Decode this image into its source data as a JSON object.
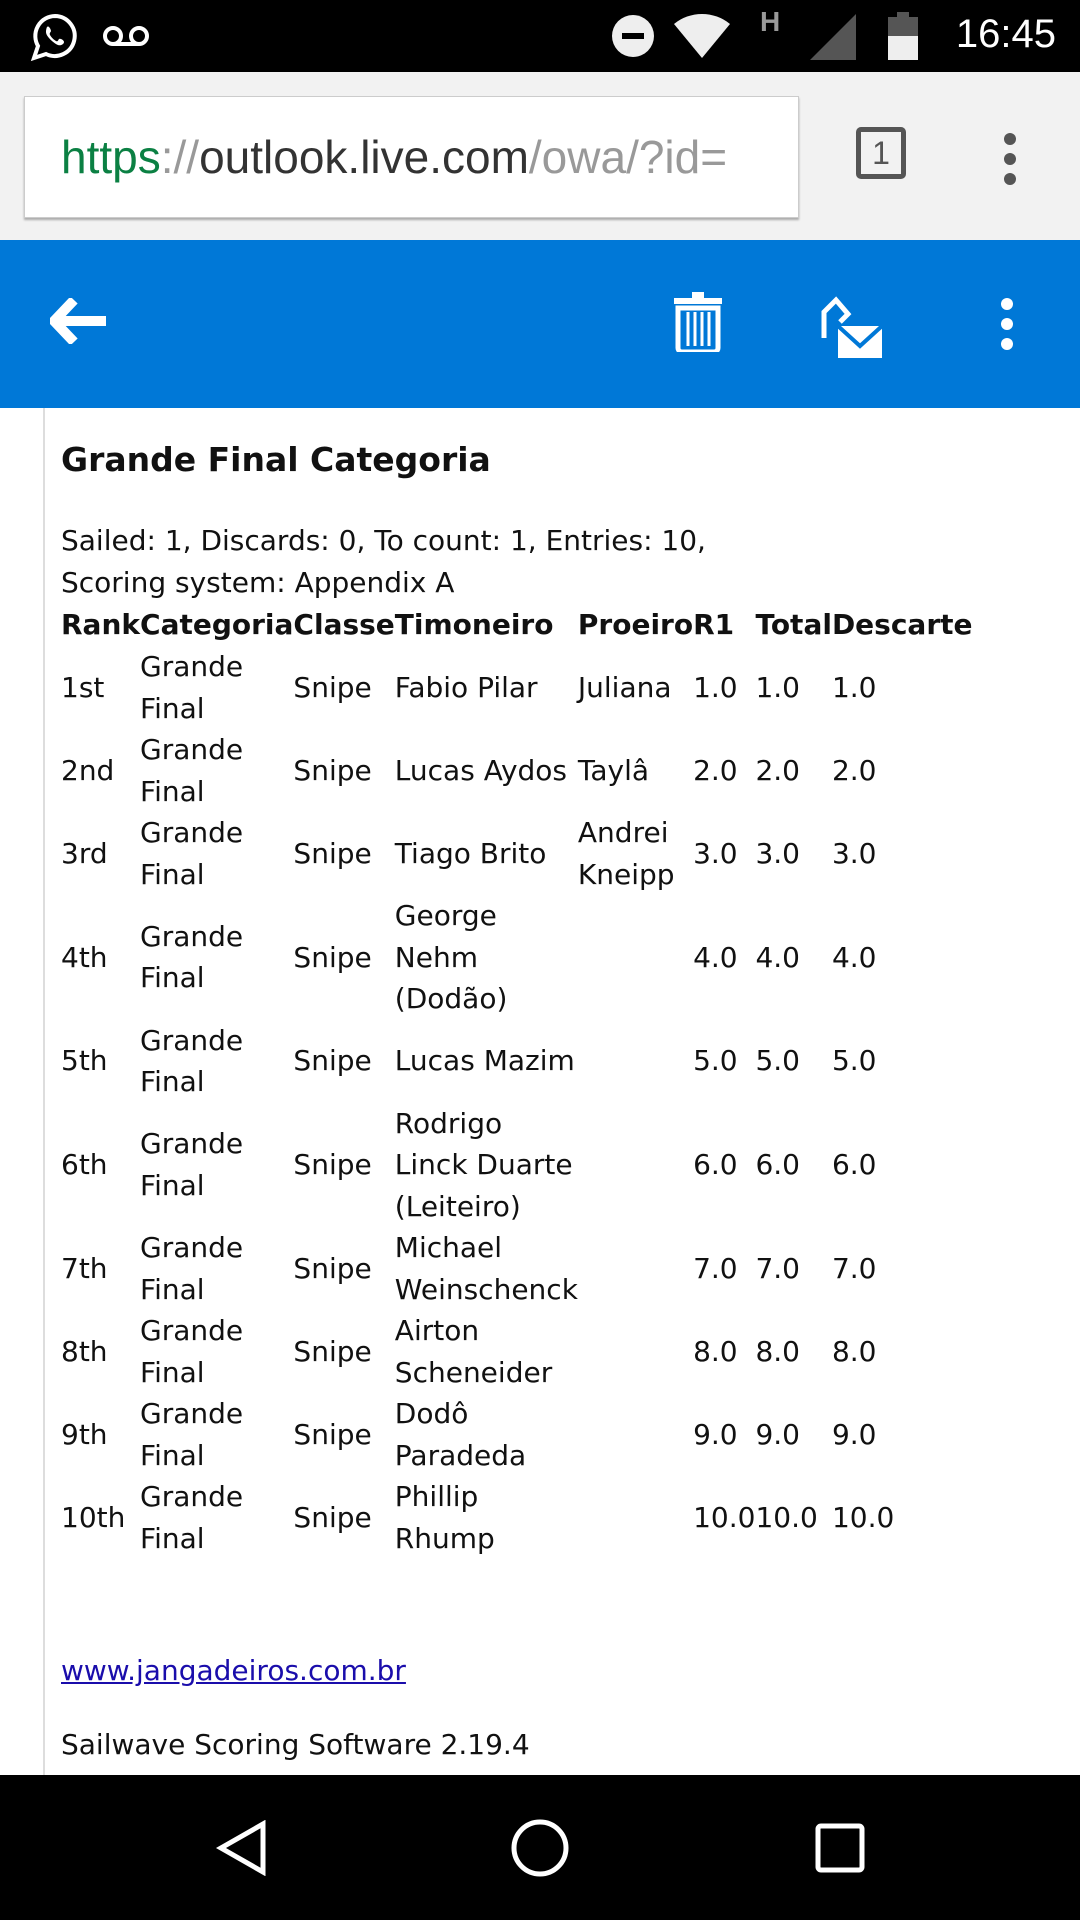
{
  "status_bar": {
    "time": "16:45",
    "icons": [
      "whatsapp-icon",
      "voicemail-icon",
      "do-not-disturb-icon",
      "wifi-icon",
      "h-network-icon",
      "signal-icon",
      "battery-icon"
    ],
    "network_label": "H"
  },
  "browser": {
    "url_scheme": "https",
    "url_sep": "://",
    "url_host": "outlook.live.com",
    "url_path": "/owa/?id=",
    "tab_count": "1"
  },
  "app_bar": {
    "color": "#0078d7",
    "icons": [
      "back-arrow-icon",
      "trash-icon",
      "mark-unread-icon",
      "more-vert-icon"
    ]
  },
  "email": {
    "title": "Grande Final Categoria",
    "meta_line1": "Sailed: 1, Discards: 0, To count: 1, Entries: 10,",
    "meta_line2": "Scoring system: Appendix A",
    "table": {
      "headers": [
        "Rank",
        "Categoria",
        "Classe",
        "Timoneiro",
        "Proeiro",
        "R1",
        "Total",
        "Descarte"
      ],
      "rows": [
        [
          "1st",
          "Grande Final",
          "Snipe",
          "Fabio Pilar",
          "Juliana",
          "1.0",
          "1.0",
          "1.0"
        ],
        [
          "2nd",
          "Grande Final",
          "Snipe",
          "Lucas Aydos",
          "Taylâ",
          "2.0",
          "2.0",
          "2.0"
        ],
        [
          "3rd",
          "Grande Final",
          "Snipe",
          "Tiago Brito",
          "Andrei Kneipp",
          "3.0",
          "3.0",
          "3.0"
        ],
        [
          "4th",
          "Grande Final",
          "Snipe",
          "George Nehm (Dodão)",
          "",
          "4.0",
          "4.0",
          "4.0"
        ],
        [
          "5th",
          "Grande Final",
          "Snipe",
          "Lucas Mazim",
          "",
          "5.0",
          "5.0",
          "5.0"
        ],
        [
          "6th",
          "Grande Final",
          "Snipe",
          "Rodrigo Linck Duarte (Leiteiro)",
          "",
          "6.0",
          "6.0",
          "6.0"
        ],
        [
          "7th",
          "Grande Final",
          "Snipe",
          "Michael Weinschenck",
          "",
          "7.0",
          "7.0",
          "7.0"
        ],
        [
          "8th",
          "Grande Final",
          "Snipe",
          "Airton Scheneider",
          "",
          "8.0",
          "8.0",
          "8.0"
        ],
        [
          "9th",
          "Grande Final",
          "Snipe",
          "Dodô Paradeda",
          "",
          "9.0",
          "9.0",
          "9.0"
        ],
        [
          "10th",
          "Grande Final",
          "Snipe",
          "Phillip Rhump",
          "",
          "10.0",
          "10.0",
          "10.0"
        ]
      ]
    },
    "link": "www.jangadeiros.com.br",
    "footer": "Sailwave Scoring Software 2.19.4"
  },
  "nav_bar": {
    "icons": [
      "back-triangle-icon",
      "home-circle-icon",
      "recents-square-icon"
    ]
  }
}
